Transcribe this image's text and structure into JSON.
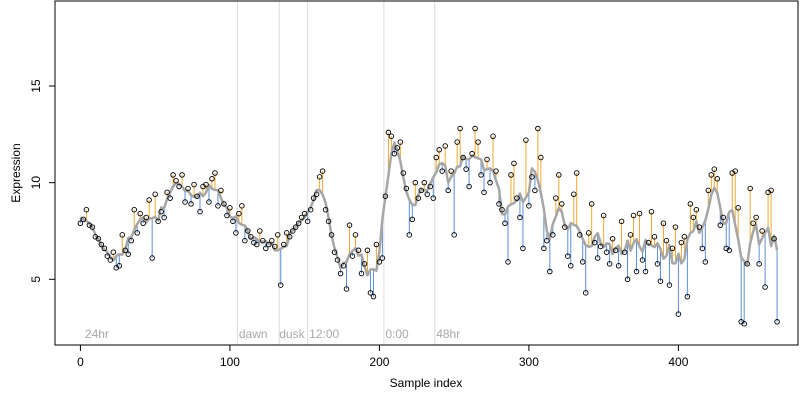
{
  "chart_data": {
    "type": "scatter",
    "title": "",
    "xlabel": "Sample index",
    "ylabel": "Expression",
    "xlim": [
      -17,
      480
    ],
    "ylim": [
      1.6,
      19.4
    ],
    "x_ticks": [
      0,
      100,
      200,
      300,
      400
    ],
    "y_ticks": [
      5,
      10,
      15
    ],
    "grid": false,
    "background_color": "#ffffff",
    "colors": {
      "fit_line": "#a6a6a6",
      "residual_positive": "#f0a830",
      "residual_negative": "#5b8fd6",
      "point_stroke": "#000000",
      "vline": "#dcdcdc",
      "annotation_text": "#a8a8a8"
    },
    "annotations": [
      {
        "x": 3,
        "label": "24hr"
      },
      {
        "x": 106,
        "label": "dawn"
      },
      {
        "x": 133,
        "label": "dusk"
      },
      {
        "x": 153,
        "label": "12:00"
      },
      {
        "x": 204,
        "label": "0:00"
      },
      {
        "x": 238,
        "label": "48hr"
      }
    ],
    "vlines": [
      105,
      133,
      152,
      203,
      237
    ],
    "points": [
      [
        0,
        7.9
      ],
      [
        2,
        8.1
      ],
      [
        4,
        8.6
      ],
      [
        6,
        7.8
      ],
      [
        8,
        7.7
      ],
      [
        10,
        7.2
      ],
      [
        12,
        7.1
      ],
      [
        14,
        6.8
      ],
      [
        16,
        6.6
      ],
      [
        18,
        6.2
      ],
      [
        20,
        6.0
      ],
      [
        22,
        6.4
      ],
      [
        24,
        5.6
      ],
      [
        26,
        5.7
      ],
      [
        28,
        7.3
      ],
      [
        30,
        6.5
      ],
      [
        32,
        6.3
      ],
      [
        34,
        7.0
      ],
      [
        36,
        8.6
      ],
      [
        38,
        7.4
      ],
      [
        40,
        8.4
      ],
      [
        42,
        7.9
      ],
      [
        44,
        8.2
      ],
      [
        46,
        9.1
      ],
      [
        48,
        6.1
      ],
      [
        50,
        9.4
      ],
      [
        52,
        8.0
      ],
      [
        54,
        8.5
      ],
      [
        56,
        8.2
      ],
      [
        58,
        9.5
      ],
      [
        60,
        9.2
      ],
      [
        62,
        10.4
      ],
      [
        64,
        10.1
      ],
      [
        66,
        9.8
      ],
      [
        68,
        10.4
      ],
      [
        70,
        9.0
      ],
      [
        72,
        9.7
      ],
      [
        74,
        8.9
      ],
      [
        76,
        9.9
      ],
      [
        78,
        9.3
      ],
      [
        80,
        8.5
      ],
      [
        82,
        9.8
      ],
      [
        84,
        9.9
      ],
      [
        86,
        9.0
      ],
      [
        88,
        10.2
      ],
      [
        90,
        10.5
      ],
      [
        92,
        8.8
      ],
      [
        94,
        9.6
      ],
      [
        96,
        8.9
      ],
      [
        98,
        8.3
      ],
      [
        100,
        8.7
      ],
      [
        102,
        8.0
      ],
      [
        104,
        7.4
      ],
      [
        106,
        8.4
      ],
      [
        108,
        8.8
      ],
      [
        110,
        7.0
      ],
      [
        112,
        7.5
      ],
      [
        114,
        7.2
      ],
      [
        116,
        6.9
      ],
      [
        118,
        6.8
      ],
      [
        120,
        7.5
      ],
      [
        122,
        7.0
      ],
      [
        124,
        6.6
      ],
      [
        126,
        6.8
      ],
      [
        128,
        7.0
      ],
      [
        130,
        6.7
      ],
      [
        132,
        7.3
      ],
      [
        134,
        4.7
      ],
      [
        136,
        6.8
      ],
      [
        138,
        7.4
      ],
      [
        140,
        7.2
      ],
      [
        142,
        7.5
      ],
      [
        144,
        7.7
      ],
      [
        146,
        7.9
      ],
      [
        148,
        8.2
      ],
      [
        150,
        8.4
      ],
      [
        152,
        8.0
      ],
      [
        154,
        8.6
      ],
      [
        156,
        9.2
      ],
      [
        158,
        9.4
      ],
      [
        160,
        10.3
      ],
      [
        162,
        10.6
      ],
      [
        164,
        8.6
      ],
      [
        166,
        8.0
      ],
      [
        168,
        7.3
      ],
      [
        170,
        6.4
      ],
      [
        172,
        6.0
      ],
      [
        174,
        5.3
      ],
      [
        176,
        5.7
      ],
      [
        178,
        4.5
      ],
      [
        180,
        7.8
      ],
      [
        182,
        6.2
      ],
      [
        184,
        7.3
      ],
      [
        186,
        6.5
      ],
      [
        188,
        5.3
      ],
      [
        190,
        5.8
      ],
      [
        192,
        6.5
      ],
      [
        194,
        4.3
      ],
      [
        196,
        4.1
      ],
      [
        198,
        6.8
      ],
      [
        200,
        5.9
      ],
      [
        202,
        6.1
      ],
      [
        204,
        9.3
      ],
      [
        206,
        12.6
      ],
      [
        208,
        12.4
      ],
      [
        210,
        11.5
      ],
      [
        212,
        11.8
      ],
      [
        214,
        12.1
      ],
      [
        216,
        10.5
      ],
      [
        218,
        9.7
      ],
      [
        220,
        7.3
      ],
      [
        222,
        8.1
      ],
      [
        224,
        10.0
      ],
      [
        226,
        9.2
      ],
      [
        228,
        9.6
      ],
      [
        230,
        10.0
      ],
      [
        232,
        9.4
      ],
      [
        234,
        9.8
      ],
      [
        236,
        9.2
      ],
      [
        238,
        11.3
      ],
      [
        240,
        11.7
      ],
      [
        242,
        10.6
      ],
      [
        244,
        11.9
      ],
      [
        246,
        9.6
      ],
      [
        248,
        10.6
      ],
      [
        250,
        7.3
      ],
      [
        252,
        12.1
      ],
      [
        254,
        12.8
      ],
      [
        256,
        11.3
      ],
      [
        258,
        10.7
      ],
      [
        260,
        9.8
      ],
      [
        262,
        11.5
      ],
      [
        264,
        12.8
      ],
      [
        266,
        12.1
      ],
      [
        268,
        10.4
      ],
      [
        270,
        9.5
      ],
      [
        272,
        11.2
      ],
      [
        274,
        10.0
      ],
      [
        276,
        12.4
      ],
      [
        278,
        10.6
      ],
      [
        280,
        8.9
      ],
      [
        282,
        8.6
      ],
      [
        284,
        7.9
      ],
      [
        286,
        5.9
      ],
      [
        288,
        10.4
      ],
      [
        290,
        11.0
      ],
      [
        292,
        9.2
      ],
      [
        294,
        8.2
      ],
      [
        296,
        6.6
      ],
      [
        298,
        12.2
      ],
      [
        300,
        8.8
      ],
      [
        302,
        10.3
      ],
      [
        304,
        9.6
      ],
      [
        306,
        12.8
      ],
      [
        308,
        11.3
      ],
      [
        310,
        6.6
      ],
      [
        312,
        7.0
      ],
      [
        314,
        5.4
      ],
      [
        316,
        7.3
      ],
      [
        318,
        9.2
      ],
      [
        320,
        10.4
      ],
      [
        322,
        8.9
      ],
      [
        324,
        7.7
      ],
      [
        326,
        6.2
      ],
      [
        328,
        5.7
      ],
      [
        330,
        9.4
      ],
      [
        332,
        10.5
      ],
      [
        334,
        7.3
      ],
      [
        336,
        5.9
      ],
      [
        338,
        4.3
      ],
      [
        340,
        7.4
      ],
      [
        342,
        8.9
      ],
      [
        344,
        6.9
      ],
      [
        346,
        6.1
      ],
      [
        348,
        6.7
      ],
      [
        350,
        8.3
      ],
      [
        352,
        6.4
      ],
      [
        354,
        5.8
      ],
      [
        356,
        7.1
      ],
      [
        358,
        6.5
      ],
      [
        360,
        5.7
      ],
      [
        362,
        8.0
      ],
      [
        364,
        6.4
      ],
      [
        366,
        5.0
      ],
      [
        368,
        7.3
      ],
      [
        370,
        8.3
      ],
      [
        372,
        5.4
      ],
      [
        374,
        8.4
      ],
      [
        376,
        6.0
      ],
      [
        378,
        5.4
      ],
      [
        380,
        6.9
      ],
      [
        382,
        8.5
      ],
      [
        384,
        7.2
      ],
      [
        386,
        5.8
      ],
      [
        388,
        4.9
      ],
      [
        390,
        7.9
      ],
      [
        392,
        7.0
      ],
      [
        394,
        4.7
      ],
      [
        396,
        6.6
      ],
      [
        398,
        7.7
      ],
      [
        400,
        3.2
      ],
      [
        402,
        6.9
      ],
      [
        404,
        7.2
      ],
      [
        406,
        4.1
      ],
      [
        408,
        8.9
      ],
      [
        410,
        8.2
      ],
      [
        412,
        8.6
      ],
      [
        414,
        7.7
      ],
      [
        416,
        6.6
      ],
      [
        418,
        5.9
      ],
      [
        420,
        9.6
      ],
      [
        422,
        10.4
      ],
      [
        424,
        10.7
      ],
      [
        426,
        10.2
      ],
      [
        428,
        7.8
      ],
      [
        430,
        8.2
      ],
      [
        432,
        6.6
      ],
      [
        434,
        6.5
      ],
      [
        436,
        10.5
      ],
      [
        438,
        10.6
      ],
      [
        440,
        8.7
      ],
      [
        442,
        2.8
      ],
      [
        444,
        2.7
      ],
      [
        446,
        5.8
      ],
      [
        448,
        9.7
      ],
      [
        450,
        7.9
      ],
      [
        452,
        8.2
      ],
      [
        454,
        5.8
      ],
      [
        456,
        7.5
      ],
      [
        458,
        4.6
      ],
      [
        460,
        9.5
      ],
      [
        462,
        9.6
      ],
      [
        464,
        7.1
      ],
      [
        466,
        2.8
      ]
    ]
  }
}
